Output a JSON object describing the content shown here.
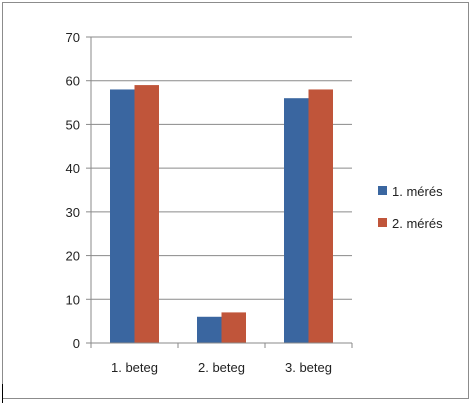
{
  "chart_data": {
    "type": "bar",
    "title": "",
    "xlabel": "",
    "ylabel": "",
    "categories": [
      "1. beteg",
      "2. beteg",
      "3. beteg"
    ],
    "series": [
      {
        "name": "1. mérés",
        "color": "#3a66a0",
        "values": [
          58,
          6,
          56
        ]
      },
      {
        "name": "2. mérés",
        "color": "#c0553a",
        "values": [
          59,
          7,
          58
        ]
      }
    ],
    "ylim": [
      0,
      70
    ],
    "yticks": [
      0,
      10,
      20,
      30,
      40,
      50,
      60,
      70
    ],
    "grid": true,
    "legend": "right"
  }
}
